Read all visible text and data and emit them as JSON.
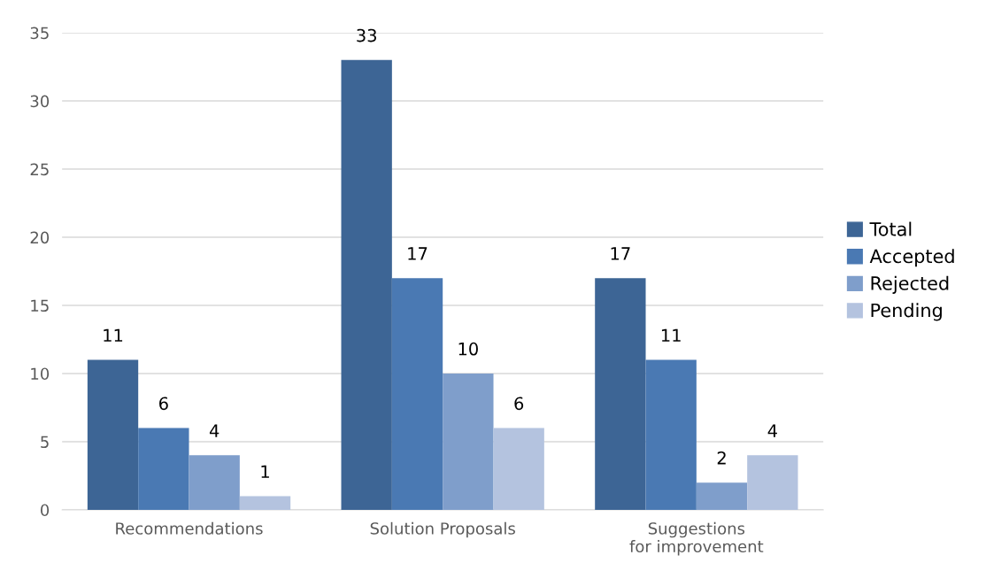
{
  "chart_data": {
    "type": "bar",
    "categories": [
      "Recommendations",
      "Solution Proposals",
      "Suggestions for improvement"
    ],
    "series": [
      {
        "name": "Total",
        "color": "#3d6595",
        "values": [
          11,
          33,
          17
        ]
      },
      {
        "name": "Accepted",
        "color": "#4a79b3",
        "values": [
          6,
          17,
          11
        ]
      },
      {
        "name": "Rejected",
        "color": "#7f9ecb",
        "values": [
          4,
          10,
          2
        ]
      },
      {
        "name": "Pending",
        "color": "#b4c3df",
        "values": [
          1,
          6,
          4
        ]
      }
    ],
    "ylim": [
      0,
      35
    ],
    "yticks": [
      0,
      5,
      10,
      15,
      20,
      25,
      30,
      35
    ],
    "grid": "y",
    "legend": "right",
    "data_labels": true
  }
}
